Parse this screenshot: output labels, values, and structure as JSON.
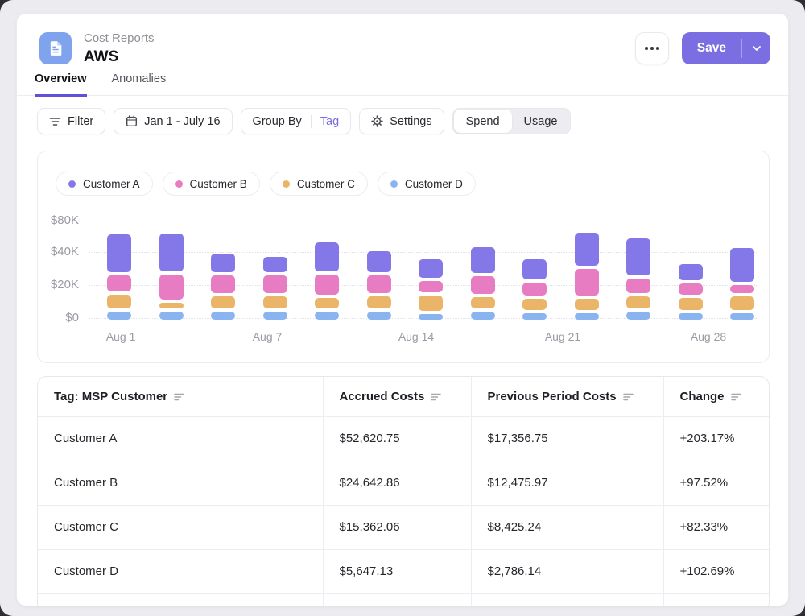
{
  "header": {
    "subtitle": "Cost Reports",
    "title": "AWS",
    "save_label": "Save"
  },
  "tabs": [
    {
      "label": "Overview",
      "active": true
    },
    {
      "label": "Anomalies",
      "active": false
    }
  ],
  "toolbar": {
    "filter_label": "Filter",
    "date_range": "Jan 1 - July 16",
    "group_by_label": "Group By",
    "group_by_value": "Tag",
    "settings_label": "Settings",
    "view_toggle": {
      "options": [
        "Spend",
        "Usage"
      ],
      "selected": "Spend"
    }
  },
  "colors": {
    "accent_purple": "#7B6EE3",
    "tab_underline": "#5F50DB",
    "doc_icon_blue": "#7FA3ED",
    "customer_a": "#8478E8",
    "customer_b": "#E87CC3",
    "customer_c": "#EAB569",
    "customer_d": "#8AB4F0"
  },
  "chart_data": {
    "type": "bar",
    "stacked": true,
    "title": "",
    "xlabel": "",
    "ylabel": "",
    "x_tick_labels": [
      "Aug 1",
      "Aug 7",
      "Aug 14",
      "Aug 21",
      "Aug 28"
    ],
    "y_tick_labels": [
      "$0",
      "$20K",
      "$40K",
      "$80K"
    ],
    "units": "USD thousands (values estimated from gridlines)",
    "grid": true,
    "legend_position": "top",
    "bar_count": 13,
    "series": [
      {
        "name": "Customer D",
        "color": "#8AB4F0",
        "values": [
          5,
          5,
          5,
          5,
          5,
          5,
          3.5,
          5,
          4,
          4,
          5,
          4,
          4
        ]
      },
      {
        "name": "Customer C",
        "color": "#EAB569",
        "values": [
          8,
          3.5,
          7,
          7,
          6,
          7,
          9,
          6.5,
          6.5,
          6.5,
          7,
          7,
          8
        ]
      },
      {
        "name": "Customer B",
        "color": "#E87CC3",
        "values": [
          10,
          15,
          11,
          11,
          12.5,
          11,
          7,
          11,
          8,
          16.5,
          9,
          7,
          5
        ]
      },
      {
        "name": "Customer A",
        "color": "#8478E8",
        "values": [
          23,
          23,
          11,
          9,
          17.5,
          12.5,
          11,
          15.5,
          12,
          20,
          22.5,
          10,
          20.5
        ]
      }
    ]
  },
  "table": {
    "columns": [
      {
        "label": "Tag: MSP Customer",
        "sortable": true
      },
      {
        "label": "Accrued Costs",
        "sortable": true
      },
      {
        "label": "Previous Period Costs",
        "sortable": true
      },
      {
        "label": "Change",
        "sortable": true
      }
    ],
    "rows": [
      {
        "name": "Customer A",
        "accrued": "$52,620.75",
        "previous": "$17,356.75",
        "change": "+203.17%"
      },
      {
        "name": "Customer B",
        "accrued": "$24,642.86",
        "previous": "$12,475.97",
        "change": "+97.52%"
      },
      {
        "name": "Customer C",
        "accrued": "$15,362.06",
        "previous": "$8,425.24",
        "change": "+82.33%"
      },
      {
        "name": "Customer D",
        "accrued": "$5,647.13",
        "previous": "$2,786.14",
        "change": "+102.69%"
      }
    ]
  }
}
